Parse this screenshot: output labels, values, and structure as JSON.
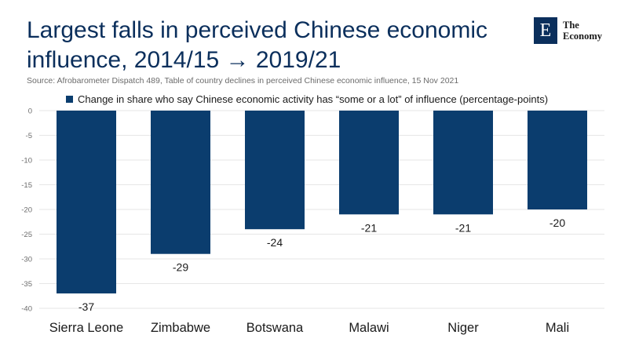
{
  "header": {
    "title": "Largest falls in perceived Chinese economic influence, 2014/15 → 2019/21",
    "source": "Source: Afrobarometer Dispatch 489, Table of country declines in perceived Chinese economic influence, 15 Nov 2021"
  },
  "logo": {
    "mark": "E",
    "line1": "The",
    "line2": "Economy"
  },
  "colors": {
    "bar": "#0b3d6e",
    "title": "#0b2f5c",
    "grid": "#e6e6e6"
  },
  "chart_data": {
    "type": "bar",
    "title": "Largest falls in perceived Chinese economic influence, 2014/15 → 2019/21",
    "categories": [
      "Sierra Leone",
      "Zimbabwe",
      "Botswana",
      "Malawi",
      "Niger",
      "Mali"
    ],
    "series": [
      {
        "name": "Change in share who say Chinese economic activity has “some or a lot” of influence (percentage-points)",
        "values": [
          -37,
          -29,
          -24,
          -21,
          -21,
          -20
        ]
      }
    ],
    "yticks": [
      0,
      -5,
      -10,
      -15,
      -20,
      -25,
      -30,
      -35,
      -40
    ],
    "ylim": [
      -40,
      0
    ],
    "xlabel": "",
    "ylabel": "",
    "grid": true,
    "legend": "top"
  }
}
